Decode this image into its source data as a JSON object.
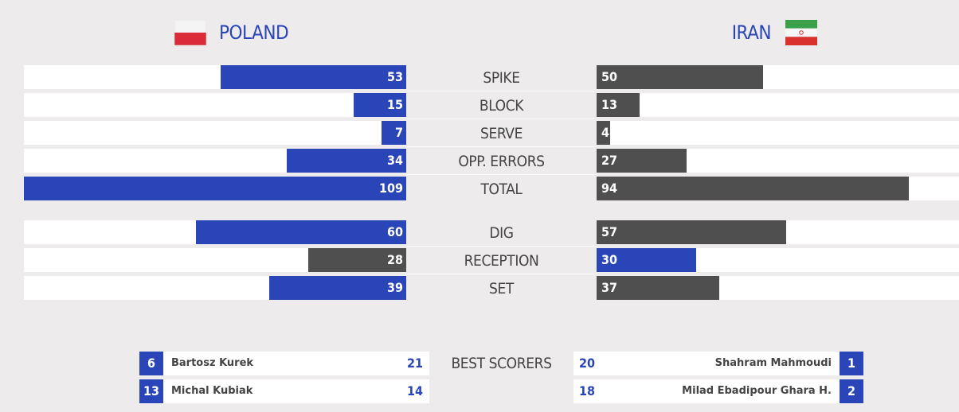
{
  "teams": {
    "left": {
      "name": "POLAND",
      "flag": "poland-flag"
    },
    "right": {
      "name": "IRAN",
      "flag": "iran-flag"
    }
  },
  "colors": {
    "highlight": "#2a45b8",
    "dim": "#4f4f4f",
    "track": "#ffffff",
    "background": "#edebec"
  },
  "chart_data": {
    "type": "bar",
    "categories": [
      "SPIKE",
      "BLOCK",
      "SERVE",
      "OPP. ERRORS",
      "TOTAL",
      "DIG",
      "RECEPTION",
      "SET"
    ],
    "series": [
      {
        "name": "POLAND",
        "values": [
          53,
          15,
          7,
          34,
          109,
          60,
          28,
          39
        ]
      },
      {
        "name": "IRAN",
        "values": [
          50,
          13,
          4,
          27,
          94,
          57,
          30,
          37
        ]
      }
    ],
    "groups": [
      {
        "rows": [
          0,
          1,
          2,
          3,
          4
        ],
        "scale_max": 109
      },
      {
        "rows": [
          5,
          6,
          7
        ],
        "scale_max": 109
      }
    ]
  },
  "best_scorers": {
    "label": "BEST SCORERS",
    "left": [
      {
        "number": "6",
        "name": "Bartosz Kurek",
        "points": "21"
      },
      {
        "number": "13",
        "name": "Michal Kubiak",
        "points": "14"
      }
    ],
    "right": [
      {
        "number": "1",
        "name": "Shahram Mahmoudi",
        "points": "20"
      },
      {
        "number": "2",
        "name": "Milad Ebadipour Ghara H.",
        "points": "18"
      }
    ]
  }
}
